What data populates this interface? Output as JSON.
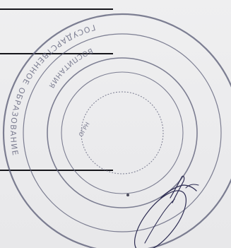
{
  "document": {
    "kind": "scanned document fragment",
    "ink_colors": {
      "stamp": "#5d5f78",
      "rules": "#15151a",
      "signature": "#2d2c52",
      "paper": "#ececed"
    }
  },
  "stamp": {
    "icon": "round-seal",
    "legible_text_outer": "ГОСУДАРСТВЕННОЕ ОБРАЗОВАНИЕ",
    "legible_text_inner": "ВОСПИТАНИЯ",
    "center_marks": "ОГРН"
  },
  "signature": {
    "icon": "handwritten-signature"
  }
}
